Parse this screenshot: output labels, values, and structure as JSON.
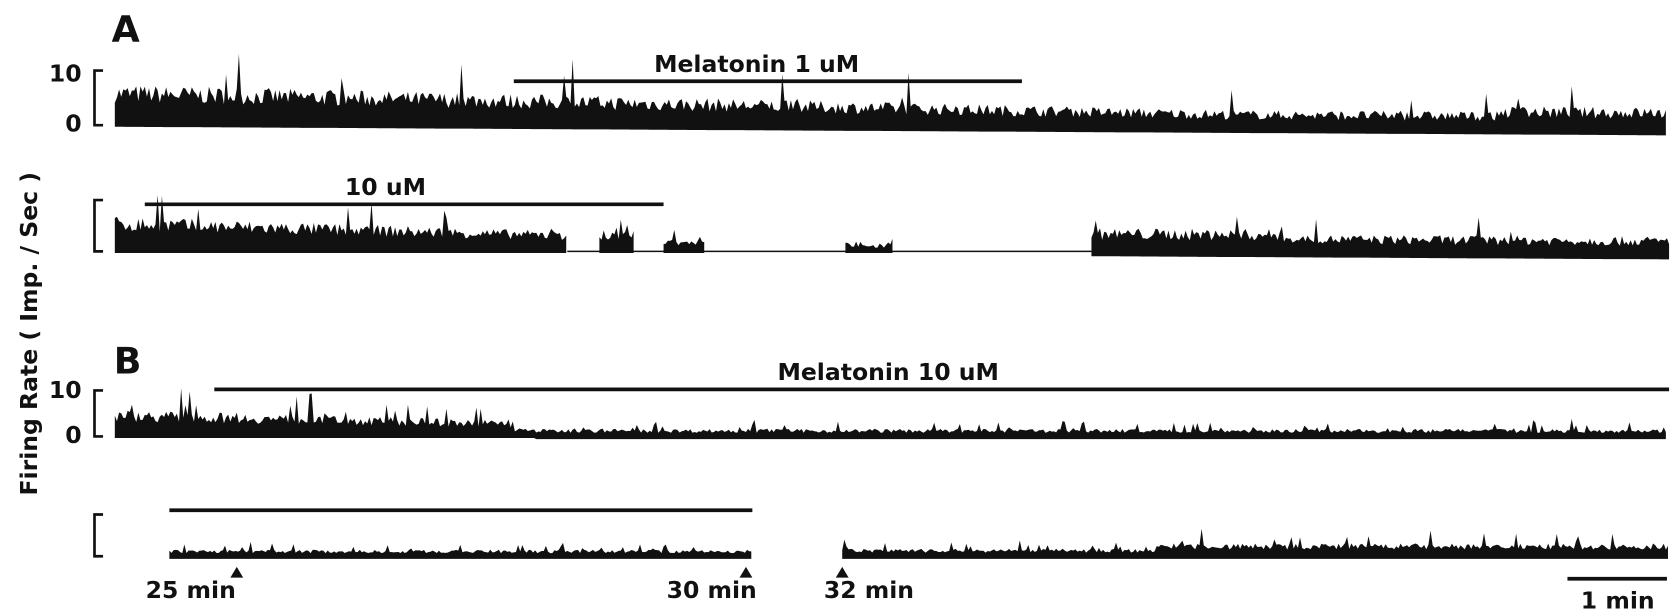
{
  "panels": [
    {
      "label": "A",
      "traces": [
        {
          "yticks": [
            "10",
            "0"
          ],
          "treatment": "Melatonin 1 uM"
        },
        {
          "treatment": "10 uM"
        }
      ]
    },
    {
      "label": "B",
      "traces": [
        {
          "yticks": [
            "10",
            "0"
          ],
          "treatment": "Melatonin 10 uM"
        },
        {
          "time_labels": [
            "25 min",
            "30 min",
            "32 min"
          ]
        }
      ]
    }
  ],
  "y_axis_label": "Firing Rate ( Imp. / Sec )",
  "scale_bar_label": "1 min"
}
